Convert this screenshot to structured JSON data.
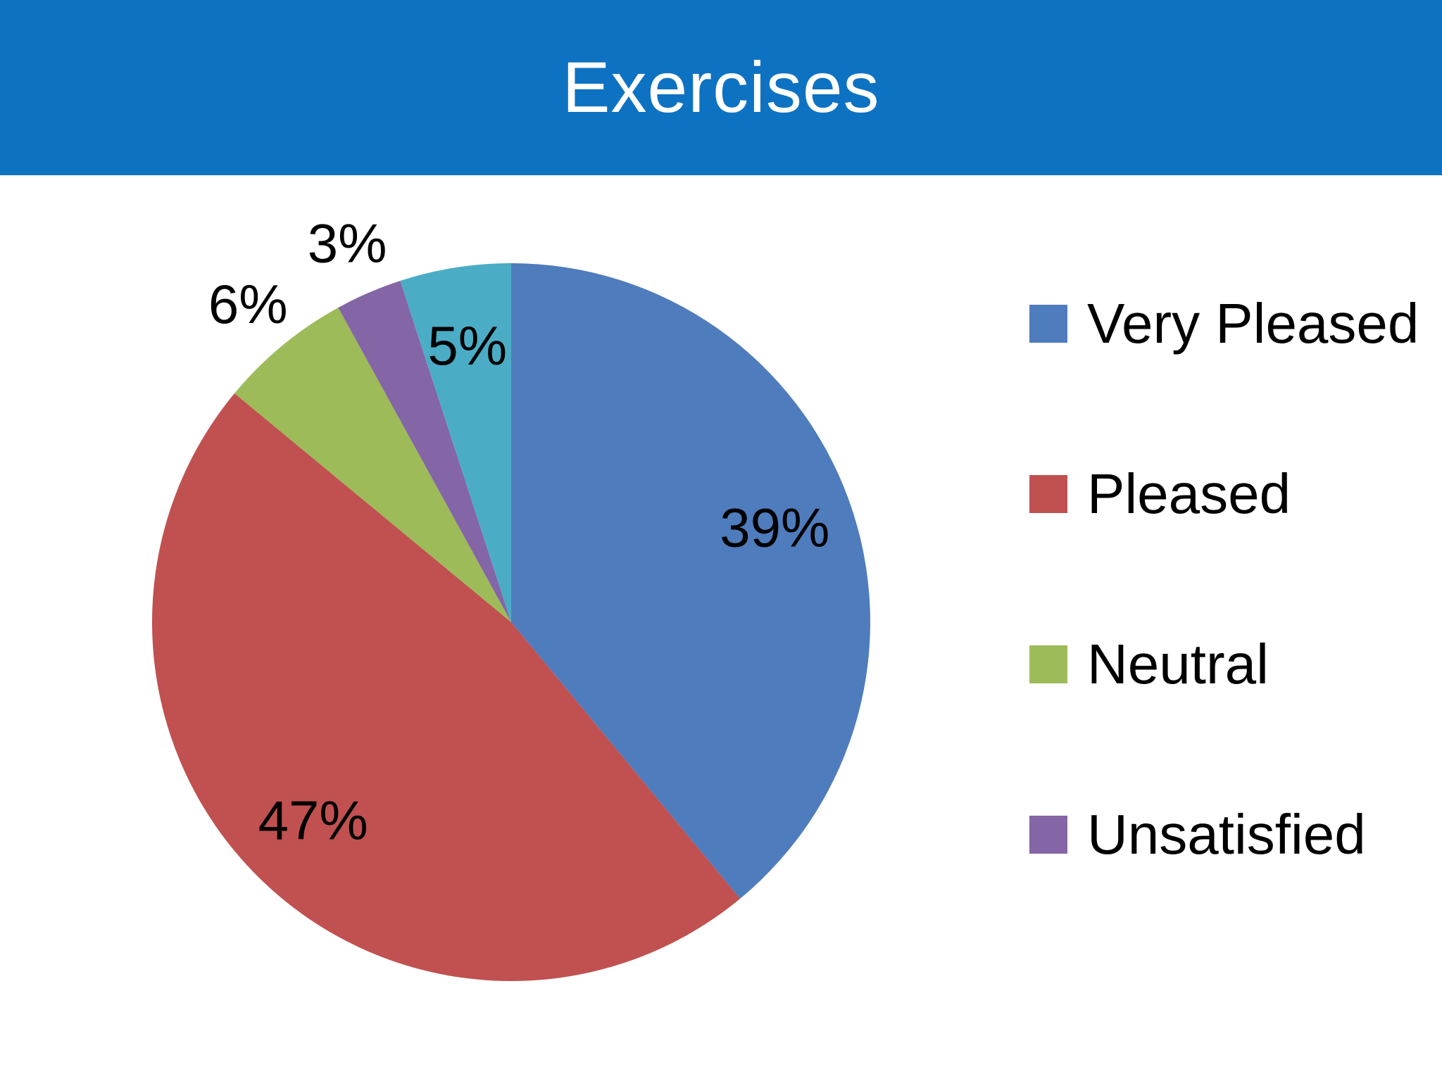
{
  "header": {
    "title": "Exercises",
    "background_color": "#0E72C2",
    "text_color": "#FFFFFF"
  },
  "chart_data": {
    "type": "pie",
    "title": "Exercises",
    "start_angle": "top",
    "direction": "clockwise",
    "slices": [
      {
        "label": "Very Pleased",
        "value_pct": 39,
        "data_label": "39%",
        "color": "#4F7CBD",
        "label_position": "inside"
      },
      {
        "label": "Pleased",
        "value_pct": 47,
        "data_label": "47%",
        "color": "#C05150",
        "label_position": "inside"
      },
      {
        "label": "Neutral",
        "value_pct": 6,
        "data_label": "6%",
        "color": "#9DBB59",
        "label_position": "outside"
      },
      {
        "label": "Unsatisfied",
        "value_pct": 3,
        "data_label": "3%",
        "color": "#8465A5",
        "label_position": "outside"
      },
      {
        "label": "",
        "value_pct": 5,
        "data_label": "5%",
        "color": "#4BACC6",
        "label_position": "inside"
      }
    ],
    "legend": {
      "position": "right",
      "entries": [
        {
          "label": "Very Pleased",
          "color": "#4F7CBD"
        },
        {
          "label": "Pleased",
          "color": "#C05150"
        },
        {
          "label": "Neutral",
          "color": "#9DBB59"
        },
        {
          "label": "Unsatisfied",
          "color": "#8465A5"
        }
      ]
    }
  }
}
